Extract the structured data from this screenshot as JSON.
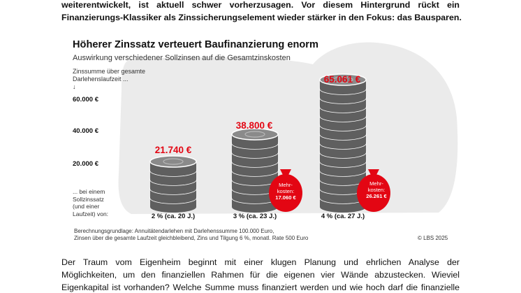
{
  "intro_text": {
    "line1": "weiterentwickelt, ist aktuell schwer vorherzusagen. Vor diesem Hintergrund rückt ein",
    "line2": "Finanzierungs-Klassiker als Zinssicherungselement wieder stärker in den Fokus: das Bausparen."
  },
  "outro_text": {
    "line1": "Der Traum vom Eigenheim beginnt mit einer klugen Planung und ehrlichen Analyse der",
    "line2": "Möglichkeiten, um den finanziellen Rahmen für die eigenen vier Wände abzustecken. Wieviel",
    "line3": "Eigenkapital ist vorhanden? Welche Summe muss finanziert werden und wie hoch darf die finanzielle"
  },
  "colors": {
    "accent": "#e30613",
    "coin": "#8a8a8a",
    "coin_dark": "#5f5f5f",
    "blob": "#ebebeb"
  },
  "chart_data": {
    "type": "bar",
    "title": "Höherer Zinssatz verteuert Baufinanzierung enorm",
    "subtitle": "Auswirkung verschiedener Sollzinsen auf die Gesamtzinskosten",
    "ylabel_line1": "Zinssumme über gesamte",
    "ylabel_line2": "Darlehenslaufzeit ...",
    "ylabel_arrow": "↓",
    "yticks": [
      "60.000 €",
      "40.000 €",
      "20.000 €"
    ],
    "ytick_values": [
      60000,
      40000,
      20000
    ],
    "ylim": [
      0,
      70000
    ],
    "xlabel_lines": [
      "... bei einem",
      "Sollzinssatz",
      "(und einer",
      "Laufzeit) von:"
    ],
    "categories": [
      "2 % (ca. 20 J.)",
      "3 % (ca. 23 J.)",
      "4 % (ca. 27 J.)"
    ],
    "values": [
      21740,
      38800,
      65061
    ],
    "value_labels": [
      "21.740 €",
      "38.800 €",
      "65.061 €"
    ],
    "extra_cost": [
      null,
      {
        "line1": "Mehr-",
        "line2": "kosten:",
        "amount": "17.060 €",
        "value": 17060
      },
      {
        "line1": "Mehr-",
        "line2": "kosten:",
        "amount": "26.261 €",
        "value": 26261
      }
    ],
    "source_line1": "Berechnungsgrundlage: Annuitätendarlehen mit Darlehenssumme 100.000 Euro,",
    "source_line2": "Zinsen über die gesamte Laufzeit gleichbleibend, Zins und Tilgung 6 %, monatl. Rate 500 Euro",
    "copyright": "© LBS 2025",
    "grid": false,
    "legend": "none"
  }
}
